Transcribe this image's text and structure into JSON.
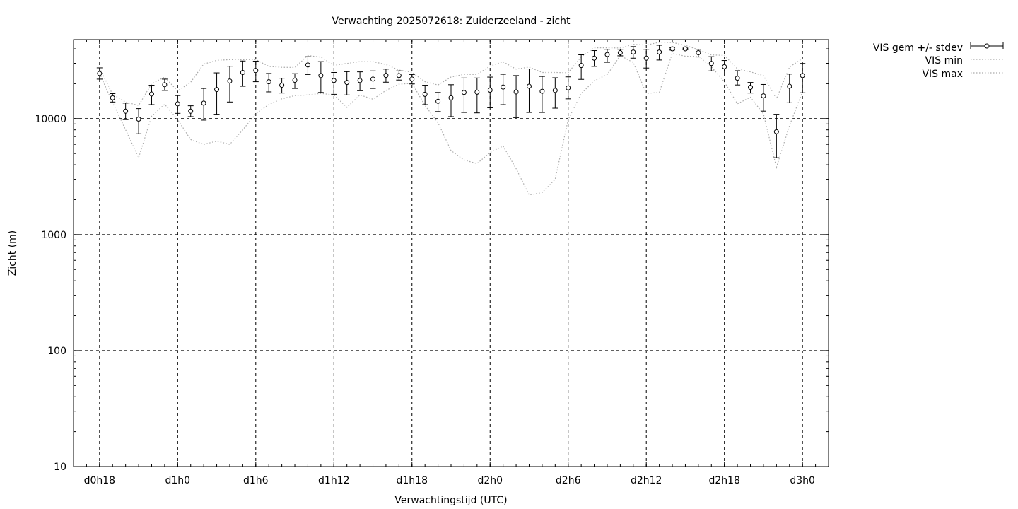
{
  "chart_data": {
    "type": "line",
    "title": "Verwachting 2025072618: Zuiderzeeland - zicht",
    "xlabel": "Verwachtingstijd (UTC)",
    "ylabel": "Zicht (m)",
    "yscale": "log",
    "ylim": [
      10,
      48000
    ],
    "xlim": [
      -2,
      56
    ],
    "grid": true,
    "legend_position": "top-right, outside plot",
    "x_tick_labels": [
      {
        "x": 0,
        "label": "d0h18"
      },
      {
        "x": 6,
        "label": "d1h0"
      },
      {
        "x": 12,
        "label": "d1h6"
      },
      {
        "x": 18,
        "label": "d1h12"
      },
      {
        "x": 24,
        "label": "d1h18"
      },
      {
        "x": 30,
        "label": "d2h0"
      },
      {
        "x": 36,
        "label": "d2h6"
      },
      {
        "x": 42,
        "label": "d2h12"
      },
      {
        "x": 48,
        "label": "d2h18"
      },
      {
        "x": 54,
        "label": "d3h0"
      }
    ],
    "y_tick_labels": [
      {
        "y": 10,
        "label": "10"
      },
      {
        "y": 100,
        "label": "100"
      },
      {
        "y": 1000,
        "label": "1000"
      },
      {
        "y": 10000,
        "label": "10000"
      }
    ],
    "x_hours_offset": [
      0,
      1,
      2,
      3,
      4,
      5,
      6,
      7,
      8,
      9,
      10,
      11,
      12,
      13,
      14,
      15,
      16,
      17,
      18,
      19,
      20,
      21,
      22,
      23,
      24,
      25,
      26,
      27,
      28,
      29,
      30,
      31,
      32,
      33,
      34,
      35,
      36,
      37,
      38,
      39,
      40,
      41,
      42,
      43,
      44,
      45,
      46,
      47,
      48,
      49,
      50,
      51,
      52,
      53,
      54
    ],
    "series": [
      {
        "name": "VIS gem +/- stdev",
        "style": "errorbars",
        "color": "#000000",
        "mean": [
          24500,
          15100,
          11600,
          9900,
          16300,
          19600,
          13400,
          11600,
          13600,
          17800,
          21100,
          25000,
          26000,
          20800,
          19400,
          21400,
          29000,
          23500,
          21300,
          20500,
          21300,
          21900,
          23600,
          23500,
          21900,
          16200,
          14100,
          15100,
          16800,
          16900,
          17600,
          18700,
          17000,
          19000,
          17200,
          17500,
          18400,
          28700,
          33200,
          35700,
          37000,
          37500,
          33200,
          37500,
          40000,
          40000,
          37000,
          29900,
          28000,
          22300,
          18600,
          15700,
          7700,
          19000,
          23500
        ],
        "low": [
          21900,
          13900,
          9800,
          7400,
          13200,
          17500,
          11100,
          10400,
          9700,
          10900,
          13900,
          19000,
          20800,
          17000,
          16600,
          18200,
          24000,
          16800,
          16200,
          16000,
          17400,
          18200,
          20600,
          21500,
          19900,
          13200,
          11500,
          10400,
          11300,
          11200,
          12400,
          13200,
          10200,
          11300,
          11300,
          12300,
          14800,
          21800,
          28200,
          30600,
          34800,
          33200,
          27300,
          32000,
          39000,
          39300,
          34000,
          25800,
          24300,
          19500,
          16600,
          11600,
          4600,
          13700,
          16700
        ],
        "high": [
          27400,
          16400,
          13600,
          12200,
          19400,
          21900,
          15800,
          12900,
          18200,
          24800,
          28300,
          31400,
          31300,
          24500,
          22300,
          24400,
          34200,
          31000,
          25000,
          25400,
          25300,
          25800,
          26700,
          25800,
          24000,
          19400,
          16800,
          19600,
          22400,
          22400,
          22800,
          24100,
          23500,
          26800,
          23100,
          22500,
          22900,
          35500,
          38600,
          39600,
          39600,
          41800,
          39600,
          42900,
          41000,
          40500,
          39600,
          34200,
          31700,
          25900,
          20500,
          19700,
          10900,
          24200,
          29900
        ]
      },
      {
        "name": "VIS min",
        "style": "dotted",
        "color": "#aaaaaa",
        "values": [
          24500,
          13800,
          8000,
          4600,
          10500,
          13300,
          9800,
          6600,
          6000,
          6400,
          6000,
          8000,
          11000,
          13200,
          14800,
          15800,
          16000,
          16500,
          16000,
          12500,
          16000,
          14700,
          17500,
          19800,
          20100,
          13000,
          9200,
          5300,
          4400,
          4100,
          5100,
          5800,
          3700,
          2200,
          2300,
          3000,
          9800,
          16400,
          21200,
          24000,
          34900,
          30500,
          16500,
          16800,
          36500,
          34500,
          34400,
          28000,
          20700,
          13400,
          15300,
          11000,
          3800,
          8700,
          17100
        ]
      },
      {
        "name": "VIS max",
        "style": "dotted",
        "color": "#aaaaaa",
        "values": [
          27400,
          16200,
          13900,
          13000,
          20000,
          22800,
          17300,
          20600,
          29500,
          31800,
          32200,
          32200,
          32300,
          28200,
          27700,
          27600,
          35000,
          33900,
          28800,
          29900,
          31000,
          31000,
          29300,
          26200,
          25100,
          20800,
          19500,
          22800,
          24100,
          24000,
          28400,
          30900,
          26700,
          27800,
          25000,
          25000,
          24900,
          34000,
          40800,
          40800,
          40600,
          43700,
          43000,
          45600,
          45400,
          42800,
          39300,
          35400,
          35100,
          26900,
          25300,
          23500,
          14800,
          27800,
          33000
        ]
      }
    ]
  }
}
